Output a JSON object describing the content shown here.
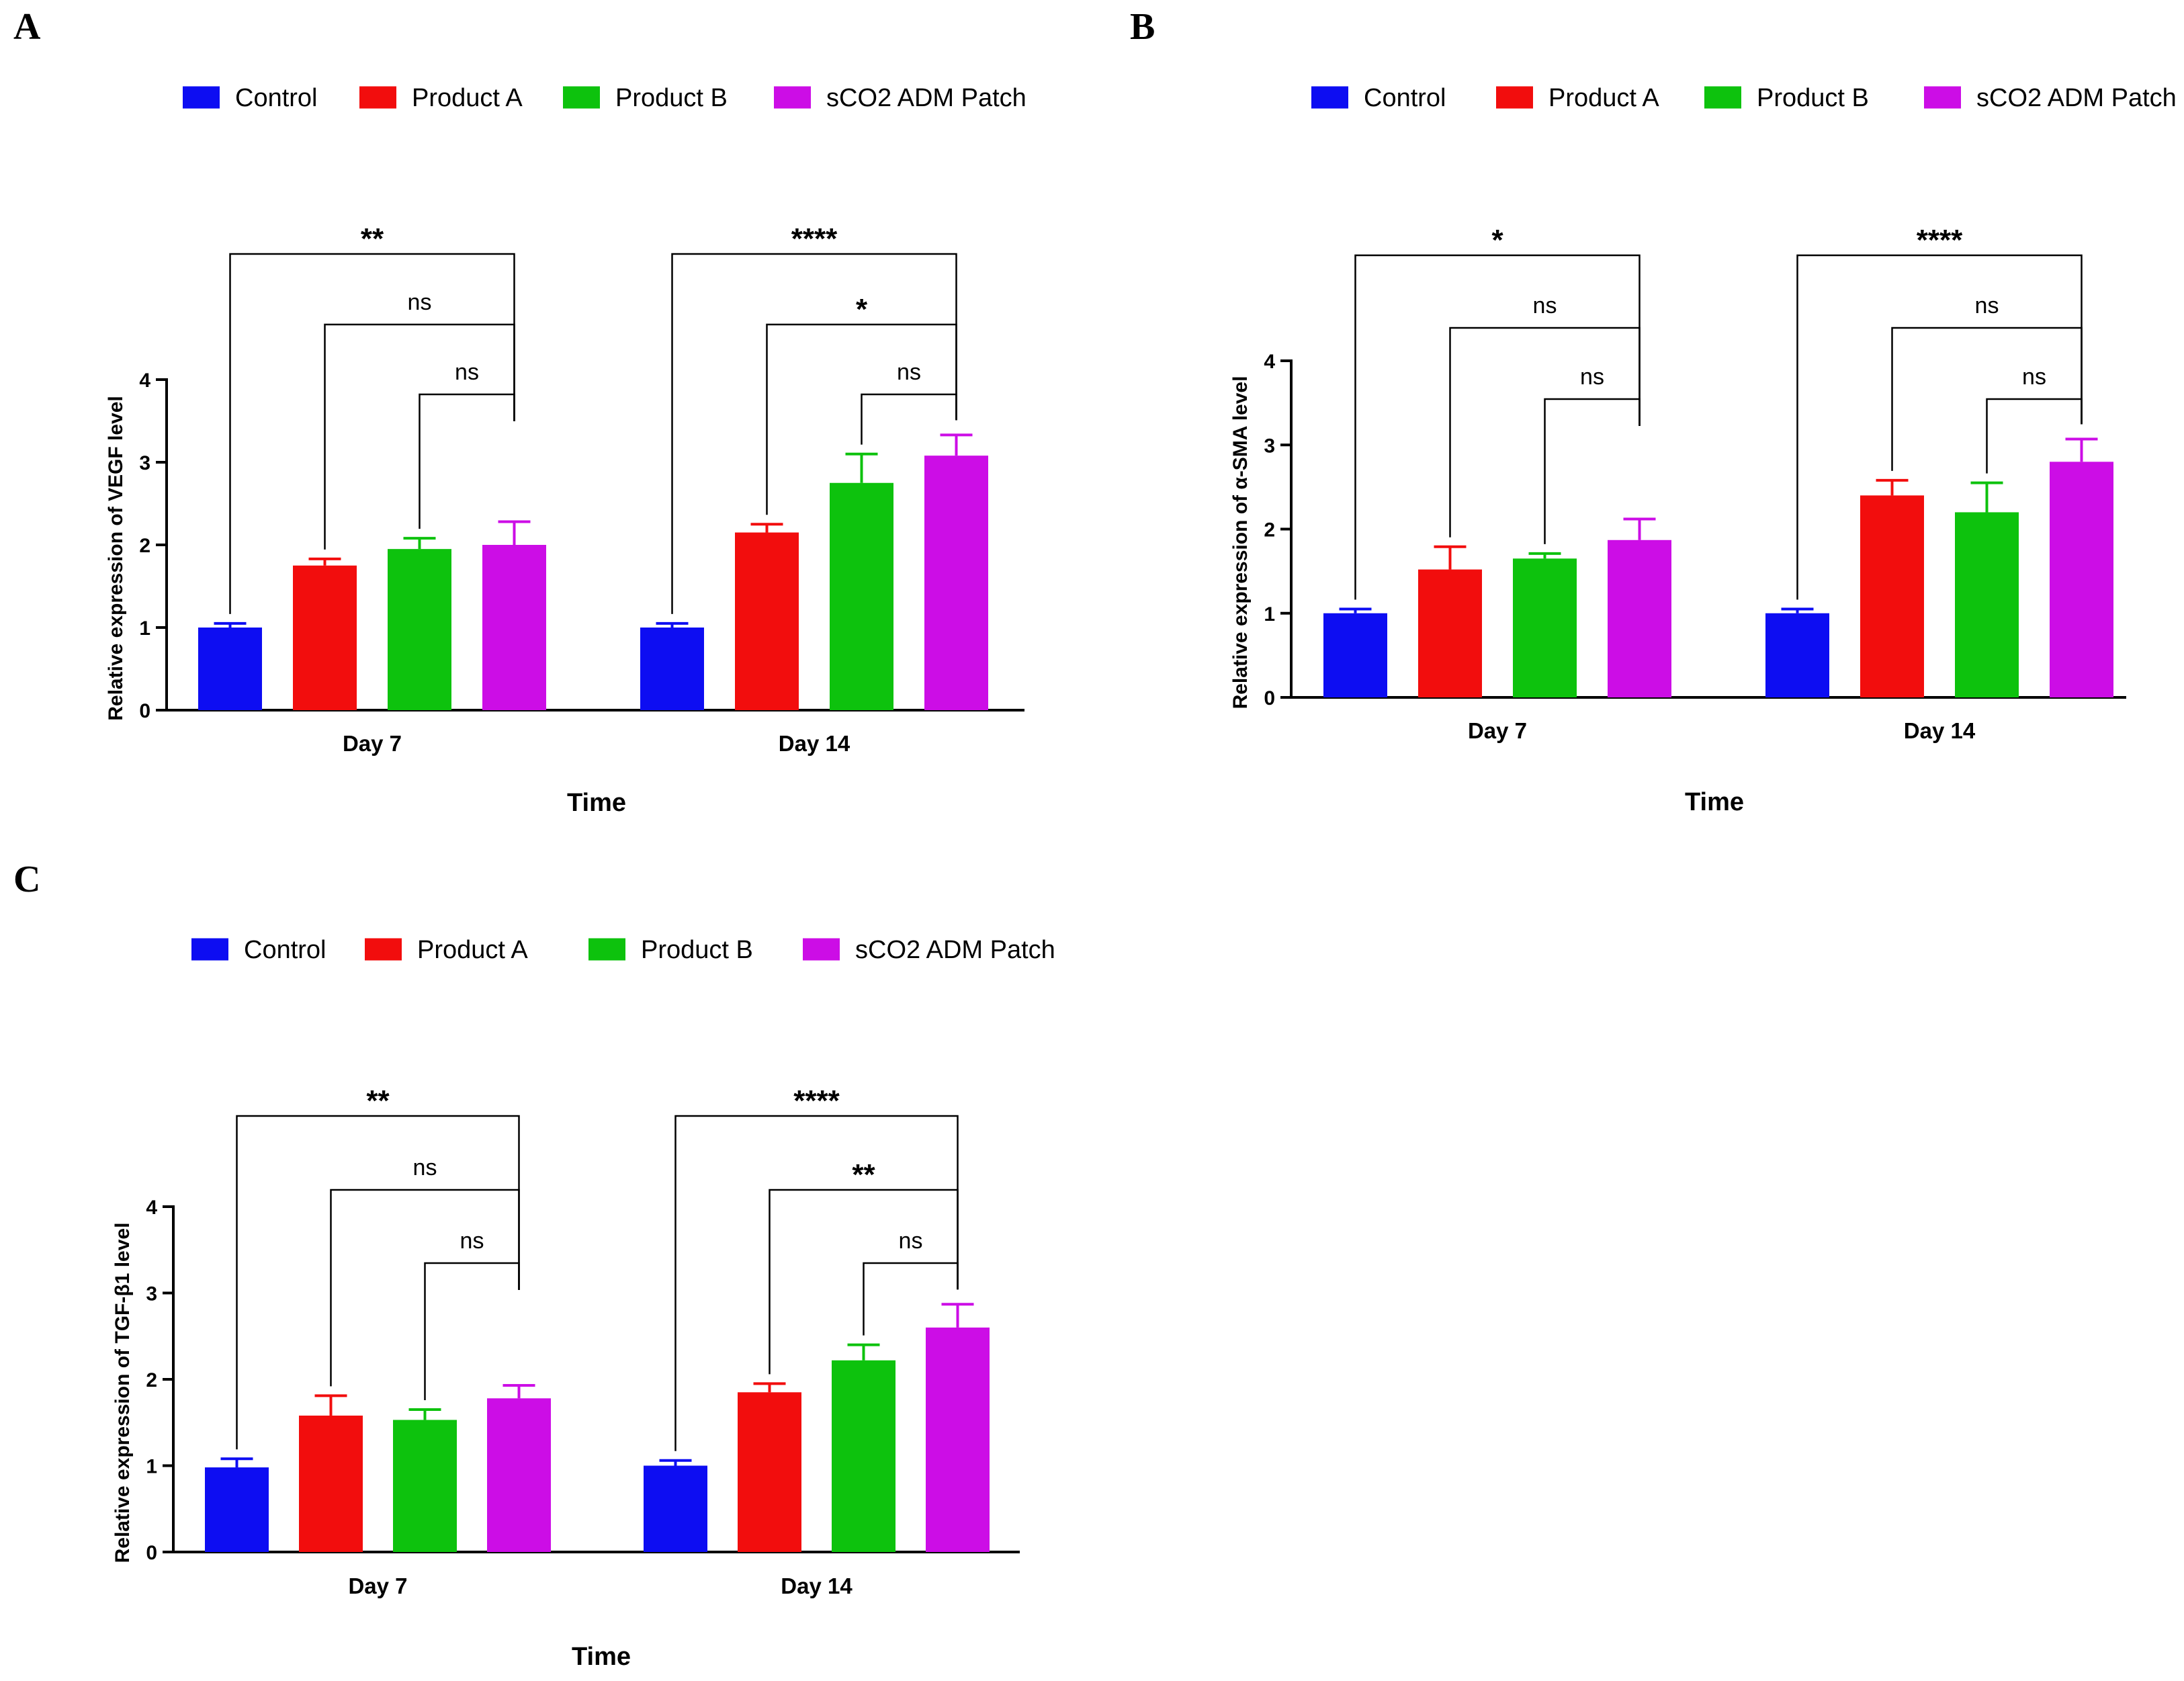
{
  "colors": {
    "Control": "#0d0df2",
    "Product A": "#f20d0d",
    "Product B": "#0dc20d",
    "sCO2 ADM Patch": "#cc0de6"
  },
  "chart_data": [
    {
      "panel": "A",
      "type": "bar",
      "categories": [
        "Day 7",
        "Day 14"
      ],
      "xlabel": "Time",
      "ylabel": "Relative expression of VEGF level",
      "ylim": [
        0,
        4
      ],
      "yticks": [
        "0",
        "1",
        "2",
        "3",
        "4"
      ],
      "legend": [
        "Control",
        "Product A",
        "Product B",
        "sCO2 ADM Patch"
      ],
      "series": [
        {
          "name": "Control",
          "values": [
            1.0,
            1.0
          ],
          "errors": [
            0.05,
            0.05
          ]
        },
        {
          "name": "Product A",
          "values": [
            1.75,
            2.15
          ],
          "errors": [
            0.08,
            0.1
          ]
        },
        {
          "name": "Product B",
          "values": [
            1.95,
            2.75
          ],
          "errors": [
            0.13,
            0.35
          ]
        },
        {
          "name": "sCO2 ADM Patch",
          "values": [
            2.0,
            3.08
          ],
          "errors": [
            0.28,
            0.25
          ]
        }
      ],
      "significance": [
        {
          "group": 0,
          "from": 0,
          "to": 3,
          "label": "**"
        },
        {
          "group": 0,
          "from": 1,
          "to": 3,
          "label": "ns"
        },
        {
          "group": 0,
          "from": 2,
          "to": 3,
          "label": "ns"
        },
        {
          "group": 1,
          "from": 0,
          "to": 3,
          "label": "****"
        },
        {
          "group": 1,
          "from": 1,
          "to": 3,
          "label": "*"
        },
        {
          "group": 1,
          "from": 2,
          "to": 3,
          "label": "ns"
        }
      ]
    },
    {
      "panel": "B",
      "type": "bar",
      "categories": [
        "Day 7",
        "Day 14"
      ],
      "xlabel": "Time",
      "ylabel": "Relative expression of α-SMA level",
      "ylim": [
        0,
        4
      ],
      "yticks": [
        "0",
        "1",
        "2",
        "3",
        "4"
      ],
      "legend": [
        "Control",
        "Product A",
        "Product B",
        "sCO2 ADM Patch"
      ],
      "series": [
        {
          "name": "Control",
          "values": [
            1.0,
            1.0
          ],
          "errors": [
            0.05,
            0.05
          ]
        },
        {
          "name": "Product A",
          "values": [
            1.52,
            2.4
          ],
          "errors": [
            0.27,
            0.18
          ]
        },
        {
          "name": "Product B",
          "values": [
            1.65,
            2.2
          ],
          "errors": [
            0.06,
            0.35
          ]
        },
        {
          "name": "sCO2 ADM Patch",
          "values": [
            1.87,
            2.8
          ],
          "errors": [
            0.25,
            0.27
          ]
        }
      ],
      "significance": [
        {
          "group": 0,
          "from": 0,
          "to": 3,
          "label": "*"
        },
        {
          "group": 0,
          "from": 1,
          "to": 3,
          "label": "ns"
        },
        {
          "group": 0,
          "from": 2,
          "to": 3,
          "label": "ns"
        },
        {
          "group": 1,
          "from": 0,
          "to": 3,
          "label": "****"
        },
        {
          "group": 1,
          "from": 1,
          "to": 3,
          "label": "ns"
        },
        {
          "group": 1,
          "from": 2,
          "to": 3,
          "label": "ns"
        }
      ]
    },
    {
      "panel": "C",
      "type": "bar",
      "categories": [
        "Day 7",
        "Day 14"
      ],
      "xlabel": "Time",
      "ylabel": "Relative expression of TGF-β1 level",
      "ylim": [
        0,
        4
      ],
      "yticks": [
        "0",
        "1",
        "2",
        "3",
        "4"
      ],
      "legend": [
        "Control",
        "Product A",
        "Product B",
        "sCO2 ADM Patch"
      ],
      "series": [
        {
          "name": "Control",
          "values": [
            0.98,
            1.0
          ],
          "errors": [
            0.1,
            0.06
          ]
        },
        {
          "name": "Product A",
          "values": [
            1.58,
            1.85
          ],
          "errors": [
            0.23,
            0.1
          ]
        },
        {
          "name": "Product B",
          "values": [
            1.53,
            2.22
          ],
          "errors": [
            0.12,
            0.18
          ]
        },
        {
          "name": "sCO2 ADM Patch",
          "values": [
            1.78,
            2.6
          ],
          "errors": [
            0.15,
            0.27
          ]
        }
      ],
      "significance": [
        {
          "group": 0,
          "from": 0,
          "to": 3,
          "label": "**"
        },
        {
          "group": 0,
          "from": 1,
          "to": 3,
          "label": "ns"
        },
        {
          "group": 0,
          "from": 2,
          "to": 3,
          "label": "ns"
        },
        {
          "group": 1,
          "from": 0,
          "to": 3,
          "label": "****"
        },
        {
          "group": 1,
          "from": 1,
          "to": 3,
          "label": "**"
        },
        {
          "group": 1,
          "from": 2,
          "to": 3,
          "label": "ns"
        }
      ]
    }
  ]
}
